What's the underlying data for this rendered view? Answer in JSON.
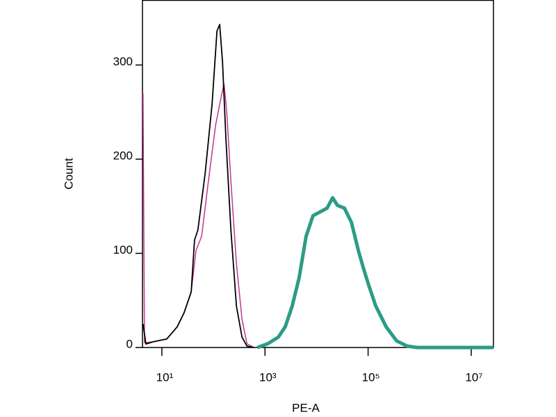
{
  "chart_data": {
    "type": "line",
    "xlabel": "PE-A",
    "ylabel": "Count",
    "xscale": "log",
    "xlim": [
      4.2,
      27000000
    ],
    "ylim": [
      0,
      369
    ],
    "xticks": [
      {
        "value": 10,
        "label": "10¹"
      },
      {
        "value": 1000,
        "label": "10³"
      },
      {
        "value": 100000,
        "label": "10⁵"
      },
      {
        "value": 10000000,
        "label": "10⁷"
      }
    ],
    "yticks": [
      0,
      100,
      200,
      300
    ],
    "series": [
      {
        "color": "#c2338f",
        "width": 1.5,
        "x": [
          4.3,
          4.6,
          6.7,
          12.4,
          19.8,
          27,
          37,
          45.9,
          59,
          80,
          110,
          141,
          160,
          181,
          218,
          279,
          358,
          446,
          608
        ],
        "values": [
          270,
          5,
          6,
          9,
          22,
          37,
          59,
          103,
          118,
          177,
          236,
          266,
          280,
          251,
          177,
          89,
          30,
          4,
          0
        ]
      },
      {
        "color": "#000000",
        "width": 1.8,
        "x": [
          4.3,
          4.9,
          6.7,
          12.4,
          19.8,
          27,
          37,
          43,
          50,
          69,
          94,
          117,
          132,
          150,
          175,
          218,
          279,
          358,
          446,
          608
        ],
        "values": [
          25,
          3.7,
          6,
          9,
          22,
          37,
          59,
          114,
          125,
          185,
          258,
          336,
          343,
          303,
          221,
          125,
          44,
          11,
          1.5,
          0
        ]
      },
      {
        "color": "#2a9d85",
        "width": 5,
        "x": [
          710,
          1130,
          1810,
          2470,
          3370,
          4590,
          6270,
          8550,
          11700,
          16000,
          20500,
          25400,
          34700,
          47400,
          64700,
          80400,
          103000,
          141000,
          224000,
          358000,
          571000,
          910000,
          27000000
        ],
        "values": [
          0,
          4,
          11,
          22,
          44,
          74,
          118,
          140,
          144,
          148,
          159,
          151,
          148,
          133,
          103,
          85,
          66,
          44,
          22,
          7,
          1.5,
          0,
          0
        ]
      }
    ]
  }
}
